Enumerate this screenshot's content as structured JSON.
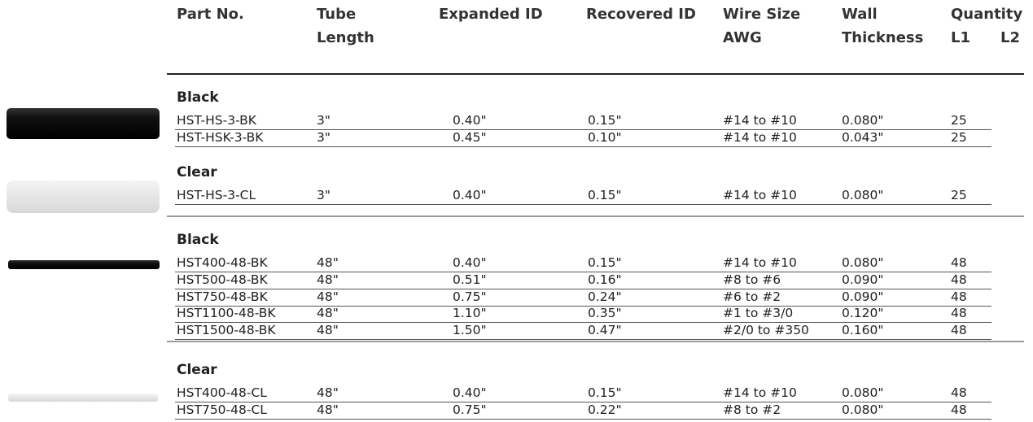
{
  "header": {
    "columns": [
      {
        "lines": [
          "Part No."
        ]
      },
      {
        "lines": [
          "Tube",
          "Length"
        ]
      },
      {
        "lines": [
          "Expanded ID"
        ]
      },
      {
        "lines": [
          "Recovered ID"
        ]
      },
      {
        "lines": [
          "Wire Size",
          "AWG"
        ]
      },
      {
        "lines": [
          "Wall",
          "Thickness"
        ]
      },
      {
        "lines": [
          "Quantity"
        ],
        "sub": [
          "L1",
          "L2"
        ]
      }
    ]
  },
  "groups": [
    {
      "label": "Black",
      "rows": [
        [
          "HST-HS-3-BK",
          "3\"",
          "0.40\"",
          "0.15\"",
          "#14 to #10",
          "0.080\"",
          "25"
        ],
        [
          "HST-HSK-3-BK",
          "3\"",
          "0.45\"",
          "0.10\"",
          "#14 to #10",
          "0.043\"",
          "25"
        ]
      ]
    },
    {
      "label": "Clear",
      "rows": [
        [
          "HST-HS-3-CL",
          "3\"",
          "0.40\"",
          "0.15\"",
          "#14 to #10",
          "0.080\"",
          "25"
        ]
      ]
    },
    {
      "label": "Black",
      "rows": [
        [
          "HST400-48-BK",
          "48\"",
          "0.40\"",
          "0.15\"",
          "#14 to #10",
          "0.080\"",
          "48"
        ],
        [
          "HST500-48-BK",
          "48\"",
          "0.51\"",
          "0.16\"",
          "#8 to #6",
          "0.090\"",
          "48"
        ],
        [
          "HST750-48-BK",
          "48\"",
          "0.75\"",
          "0.24\"",
          "#6 to #2",
          "0.090\"",
          "48"
        ],
        [
          "HST1100-48-BK",
          "48\"",
          "1.10\"",
          "0.35\"",
          "#1 to #3/0",
          "0.120\"",
          "48"
        ],
        [
          "HST1500-48-BK",
          "48\"",
          "1.50\"",
          "0.47\"",
          "#2/0 to #350",
          "0.160\"",
          "48"
        ]
      ]
    },
    {
      "label": "Clear",
      "rows": [
        [
          "HST400-48-CL",
          "48\"",
          "0.40\"",
          "0.15\"",
          "#14 to #10",
          "0.080\"",
          "48"
        ],
        [
          "HST750-48-CL",
          "48\"",
          "0.75\"",
          "0.22\"",
          "#8 to #2",
          "0.080\"",
          "48"
        ]
      ]
    }
  ]
}
